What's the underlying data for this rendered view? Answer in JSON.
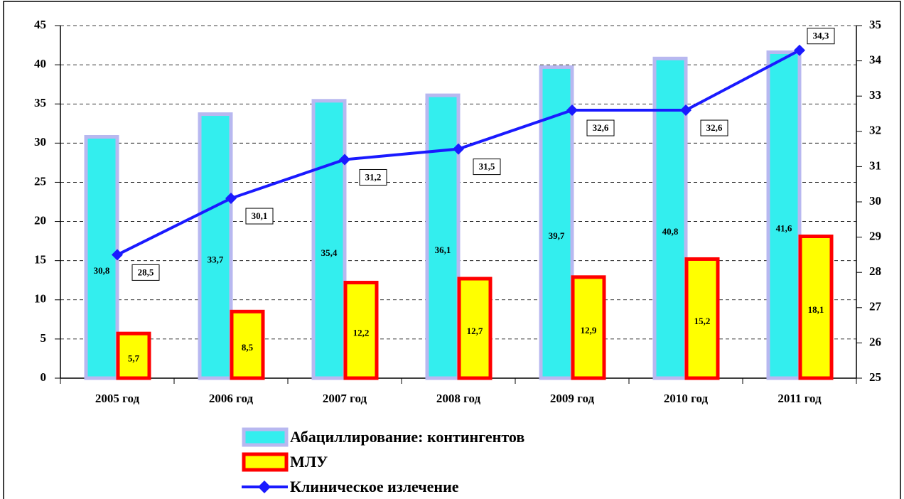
{
  "chart_data": {
    "type": "bar-line",
    "categories": [
      "2005 год",
      "2006 год",
      "2007 год",
      "2008 год",
      "2009 год",
      "2010 год",
      "2011 год"
    ],
    "series": [
      {
        "name": "Абациллирование: контингентов",
        "type": "bar",
        "color": "#33eeee",
        "border_color": "#b8b8f0",
        "values": [
          30.8,
          33.7,
          35.4,
          36.1,
          39.7,
          40.8,
          41.6
        ],
        "value_labels": [
          "30,8",
          "33,7",
          "35,4",
          "36,1",
          "39,7",
          "40,8",
          "41,6"
        ]
      },
      {
        "name": "МЛУ",
        "type": "bar",
        "color": "#ffff00",
        "border_color": "#ff0000",
        "values": [
          5.7,
          8.5,
          12.2,
          12.7,
          12.9,
          15.2,
          18.1
        ],
        "value_labels": [
          "5,7",
          "8,5",
          "12,2",
          "12,7",
          "12,9",
          "15,2",
          "18,1"
        ]
      },
      {
        "name": "Клиническое излечение",
        "type": "line",
        "axis": "y2",
        "color": "#1a1aff",
        "values": [
          28.5,
          30.1,
          31.2,
          31.5,
          32.6,
          32.6,
          34.3
        ],
        "value_labels": [
          "28,5",
          "30,1",
          "31,2",
          "31,5",
          "32,6",
          "32,6",
          "34,3"
        ]
      }
    ],
    "ylim": [
      0,
      45
    ],
    "yticks": [
      0,
      5,
      10,
      15,
      20,
      25,
      30,
      35,
      40,
      45
    ],
    "y2lim": [
      25,
      35
    ],
    "y2ticks": [
      25,
      26,
      27,
      28,
      29,
      30,
      31,
      32,
      33,
      34,
      35
    ],
    "grid": true
  }
}
